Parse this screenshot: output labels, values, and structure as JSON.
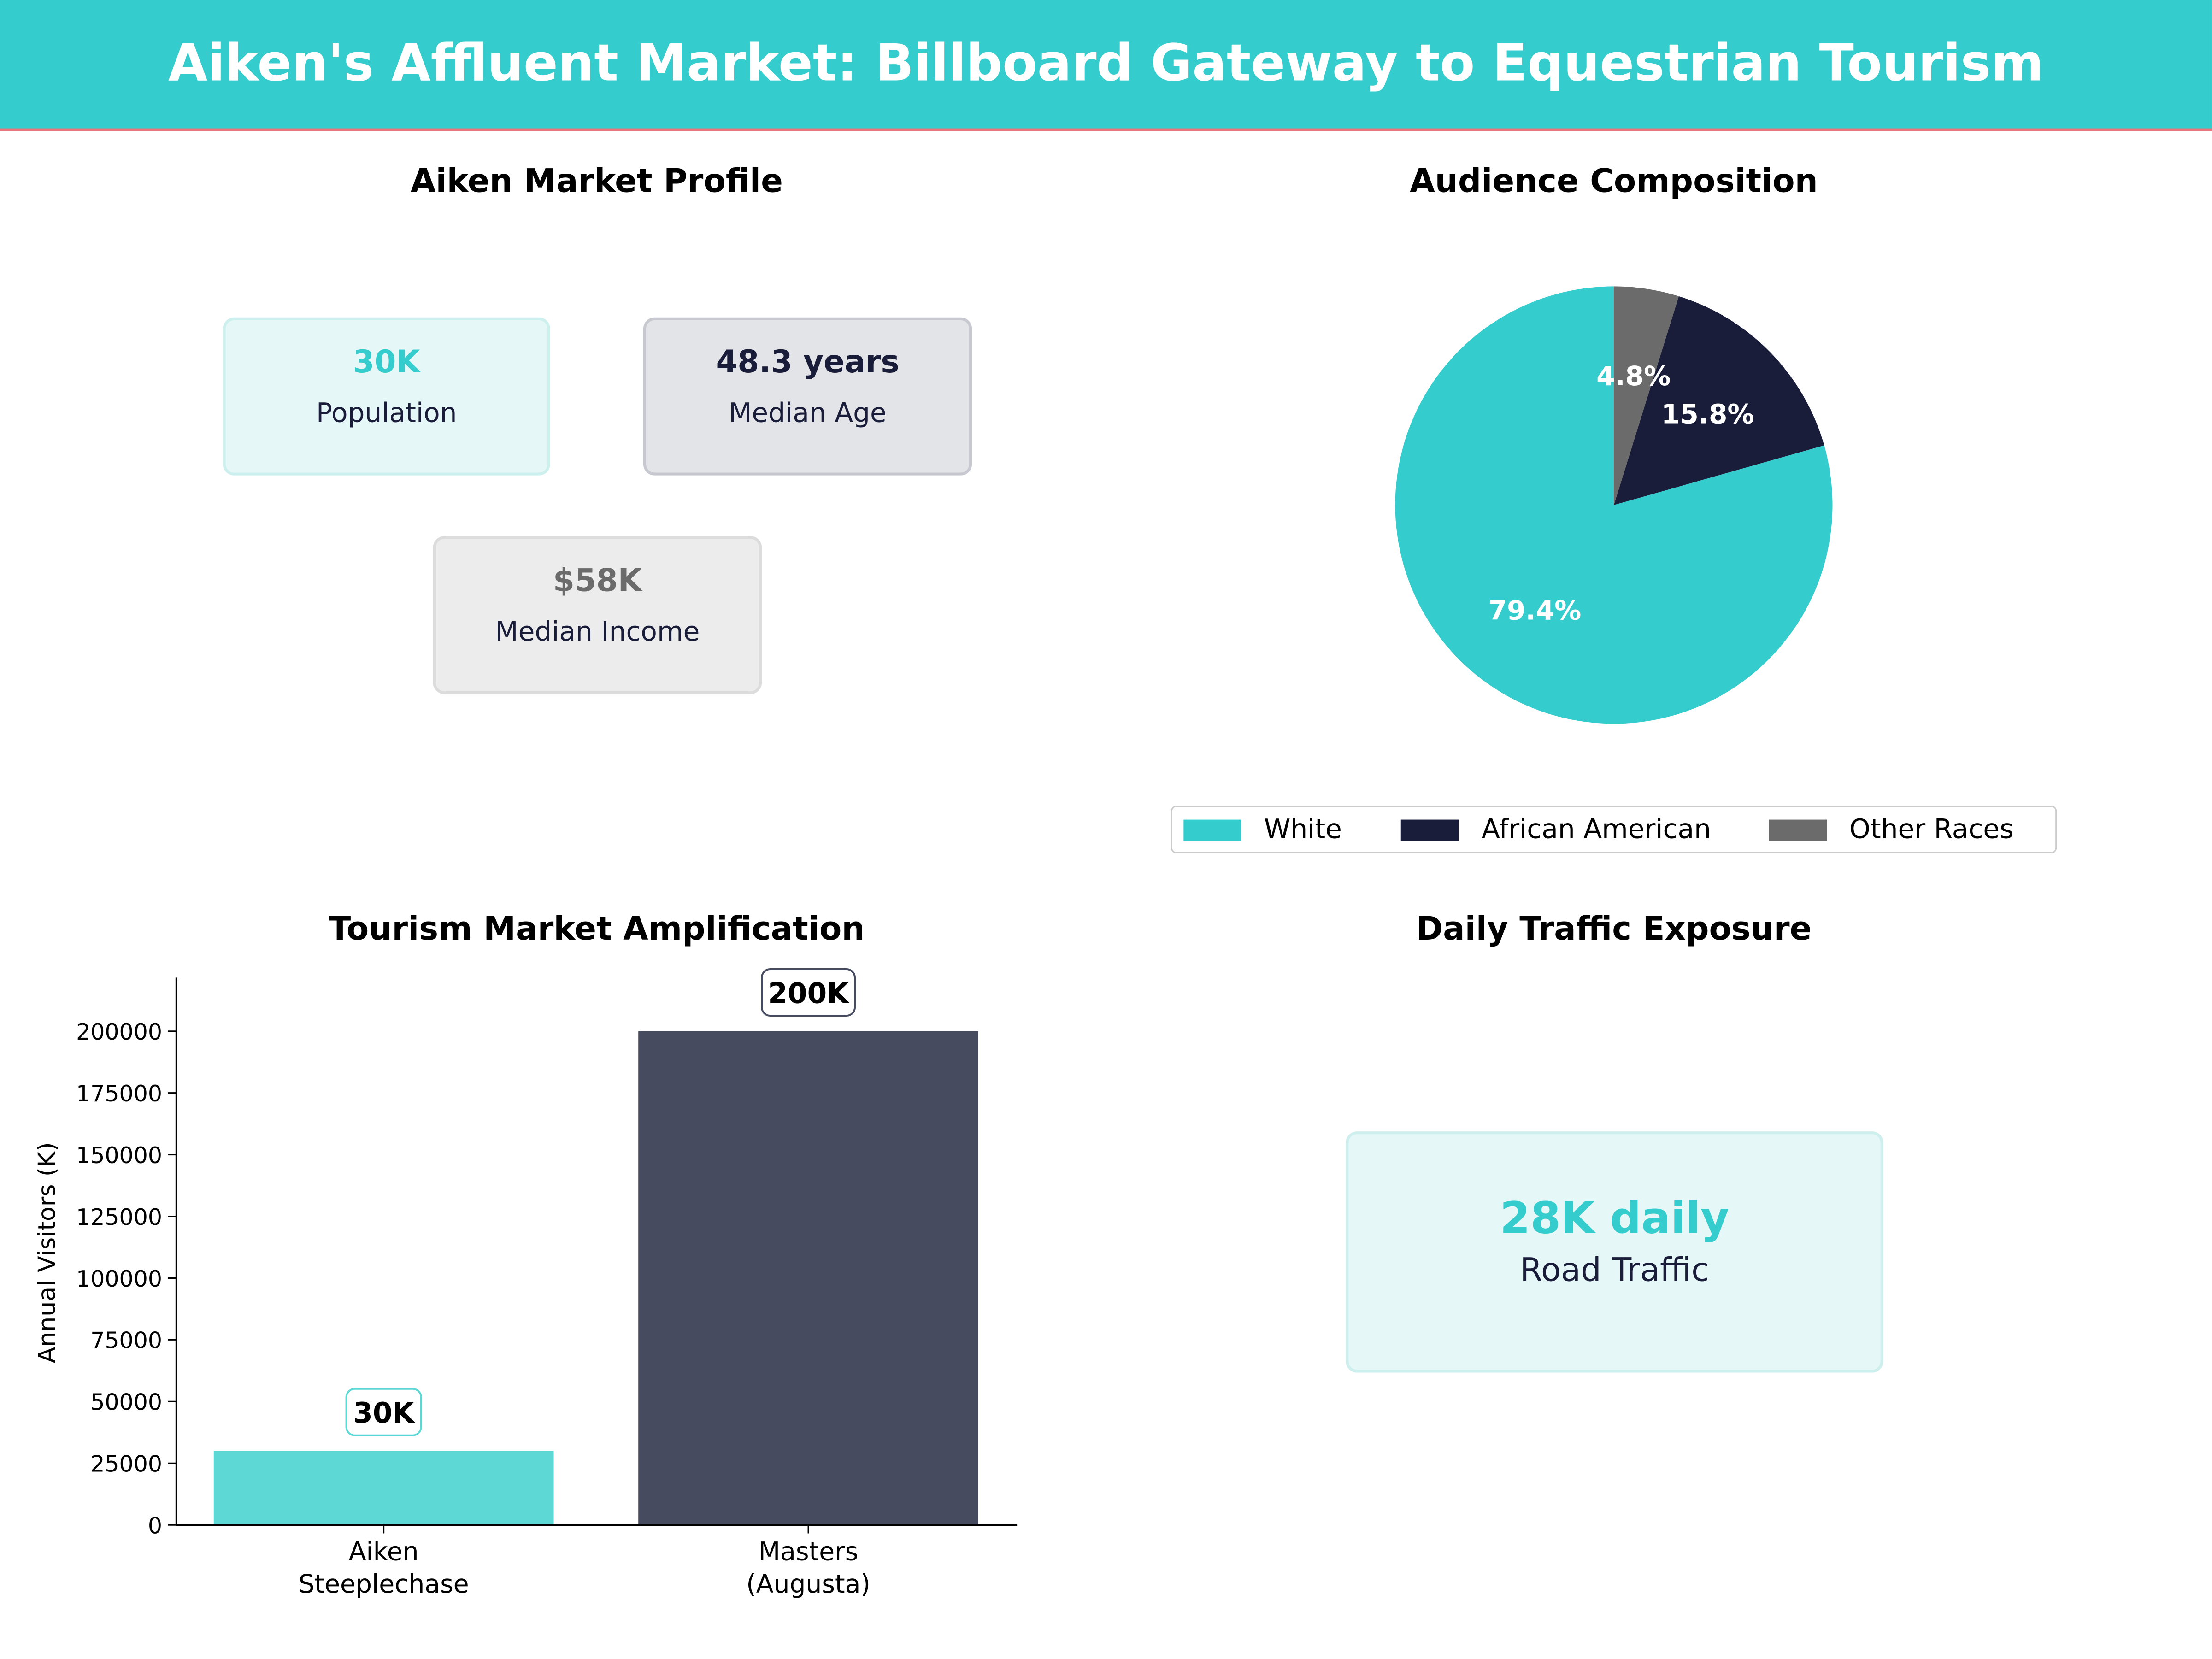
{
  "header": {
    "title": "Aiken's Affluent Market: Billboard Gateway to Equestrian Tourism"
  },
  "profile": {
    "title": "Aiken Market Profile",
    "cards": [
      {
        "value": "30K",
        "label": "Population",
        "color": "#34cccc"
      },
      {
        "value": "48.3 years",
        "label": "Median Age",
        "color": "#1a1d3a"
      },
      {
        "value": "$58K",
        "label": "Median Income",
        "color": "#6b6b6b"
      }
    ]
  },
  "traffic": {
    "title": "Daily Traffic Exposure",
    "value": "28K daily",
    "label": "Road Traffic"
  },
  "chart_data": [
    {
      "type": "pie",
      "title": "Audience Composition",
      "categories": [
        "White",
        "African American",
        "Other Races"
      ],
      "values": [
        79.4,
        15.8,
        4.8
      ],
      "labels": [
        "79.4%",
        "15.8%",
        "4.8%"
      ],
      "colors": [
        "#34cccc",
        "#1a1d3a",
        "#6b6b6b"
      ],
      "legend": "bottom"
    },
    {
      "type": "bar",
      "title": "Tourism Market Amplification",
      "categories": [
        "Aiken\nSteeplechase",
        "Masters\n(Augusta)"
      ],
      "category_lines": [
        [
          "Aiken",
          "Steeplechase"
        ],
        [
          "Masters",
          "(Augusta)"
        ]
      ],
      "values": [
        30000,
        200000
      ],
      "data_labels": [
        "30K",
        "200K"
      ],
      "colors": [
        "#5dd8d5",
        "#464b60"
      ],
      "label_border_colors": [
        "#5dd8d5",
        "#464b60"
      ],
      "ylabel": "Annual Visitors (K)",
      "ylim": [
        0,
        221700
      ],
      "yticks": [
        0,
        25000,
        50000,
        75000,
        100000,
        125000,
        150000,
        175000,
        200000
      ],
      "ytick_labels": [
        "0",
        "25000",
        "50000",
        "75000",
        "100000",
        "125000",
        "150000",
        "175000",
        "200000"
      ]
    }
  ]
}
